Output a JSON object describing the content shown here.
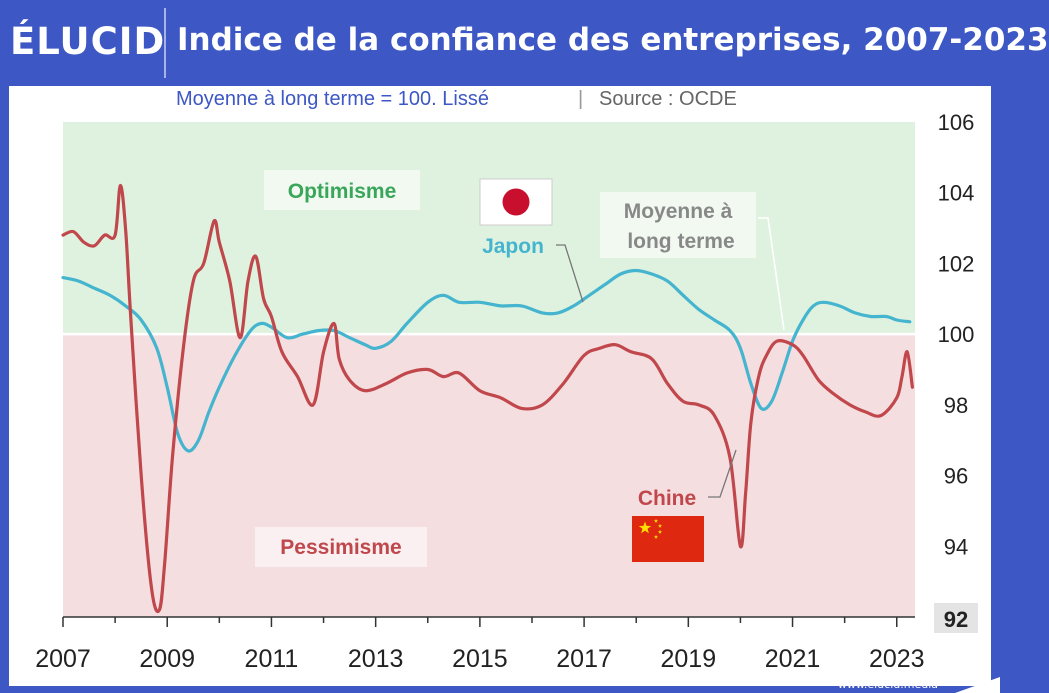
{
  "header": {
    "brand": "ÉLUCID",
    "title": "Indice de la confiance des entreprises, 2007-2023"
  },
  "subtitle": {
    "main": "Moyenne à long terme = 100. Lissé",
    "separator": "|",
    "source": "Source : OCDE"
  },
  "footer": {
    "url": "www.elucid.media"
  },
  "colors": {
    "optimism_zone": "#dff2df",
    "pessimism_zone": "#f5dedf",
    "japan": "#45b4cf",
    "china": "#c0474b",
    "optimism_text": "#3aa65a",
    "pessimism_text": "#c0474b",
    "brand_blue": "#3d57c4"
  },
  "chart_data": {
    "type": "line",
    "title": "Indice de la confiance des entreprises, 2007-2023",
    "subtitle": "Moyenne à long terme = 100. Lissé | Source : OCDE",
    "xlim": [
      2007,
      2023.35
    ],
    "ylim": [
      92,
      106
    ],
    "x_ticks": [
      "2007",
      "2009",
      "2011",
      "2013",
      "2015",
      "2017",
      "2019",
      "2021",
      "2023"
    ],
    "y_ticks": [
      "92",
      "94",
      "96",
      "98",
      "100",
      "102",
      "104",
      "106"
    ],
    "reference_line": {
      "y": 100,
      "label": "Moyenne à long terme"
    },
    "zones": {
      "above": "Optimisme",
      "below": "Pessimisme"
    },
    "series": [
      {
        "name": "Japon",
        "x": [
          2007.0,
          2007.3,
          2007.6,
          2007.9,
          2008.2,
          2008.5,
          2008.8,
          2009.0,
          2009.2,
          2009.4,
          2009.6,
          2009.8,
          2010.0,
          2010.3,
          2010.6,
          2010.8,
          2011.0,
          2011.3,
          2011.6,
          2011.9,
          2012.2,
          2012.5,
          2012.8,
          2013.0,
          2013.3,
          2013.6,
          2014.0,
          2014.3,
          2014.6,
          2015.0,
          2015.4,
          2015.8,
          2016.2,
          2016.5,
          2016.8,
          2017.1,
          2017.4,
          2017.7,
          2018.0,
          2018.3,
          2018.6,
          2018.9,
          2019.2,
          2019.5,
          2019.8,
          2020.0,
          2020.2,
          2020.4,
          2020.6,
          2020.8,
          2021.0,
          2021.2,
          2021.4,
          2021.6,
          2021.9,
          2022.2,
          2022.5,
          2022.8,
          2023.0,
          2023.25
        ],
        "y": [
          101.6,
          101.5,
          101.3,
          101.1,
          100.8,
          100.4,
          99.6,
          98.5,
          97.2,
          96.7,
          97.0,
          97.8,
          98.5,
          99.4,
          100.1,
          100.3,
          100.2,
          99.9,
          100.0,
          100.1,
          100.1,
          99.9,
          99.7,
          99.6,
          99.8,
          100.3,
          100.9,
          101.1,
          100.9,
          100.9,
          100.8,
          100.8,
          100.6,
          100.6,
          100.8,
          101.1,
          101.4,
          101.7,
          101.8,
          101.7,
          101.5,
          101.1,
          100.7,
          100.4,
          100.1,
          99.6,
          98.6,
          97.9,
          98.1,
          98.9,
          99.8,
          100.4,
          100.8,
          100.9,
          100.8,
          100.6,
          100.5,
          100.5,
          100.4,
          100.35
        ]
      },
      {
        "name": "Chine",
        "x": [
          2007.0,
          2007.2,
          2007.4,
          2007.6,
          2007.8,
          2008.0,
          2008.1,
          2008.2,
          2008.3,
          2008.5,
          2008.7,
          2008.85,
          2008.95,
          2009.1,
          2009.3,
          2009.5,
          2009.7,
          2009.9,
          2010.0,
          2010.2,
          2010.4,
          2010.55,
          2010.7,
          2010.85,
          2011.0,
          2011.2,
          2011.5,
          2011.8,
          2012.0,
          2012.2,
          2012.3,
          2012.5,
          2012.8,
          2013.2,
          2013.6,
          2014.0,
          2014.3,
          2014.6,
          2015.0,
          2015.4,
          2015.8,
          2016.2,
          2016.6,
          2017.0,
          2017.3,
          2017.6,
          2017.9,
          2018.3,
          2018.6,
          2018.9,
          2019.2,
          2019.5,
          2019.8,
          2020.0,
          2020.1,
          2020.2,
          2020.35,
          2020.5,
          2020.7,
          2021.0,
          2021.2,
          2021.5,
          2021.8,
          2022.1,
          2022.4,
          2022.7,
          2023.0,
          2023.1,
          2023.2,
          2023.3
        ],
        "y": [
          102.8,
          102.9,
          102.6,
          102.5,
          102.8,
          102.8,
          104.2,
          103.0,
          100.5,
          96.0,
          92.8,
          92.2,
          93.5,
          96.5,
          99.5,
          101.5,
          102.0,
          103.2,
          102.6,
          101.5,
          99.9,
          101.5,
          102.2,
          101.0,
          100.5,
          99.5,
          98.8,
          98.0,
          99.5,
          100.3,
          99.3,
          98.7,
          98.4,
          98.6,
          98.9,
          99.0,
          98.8,
          98.9,
          98.4,
          98.2,
          97.9,
          98.0,
          98.6,
          99.4,
          99.6,
          99.7,
          99.5,
          99.3,
          98.6,
          98.1,
          98.0,
          97.7,
          96.5,
          94.0,
          95.5,
          97.5,
          98.8,
          99.4,
          99.8,
          99.7,
          99.4,
          98.7,
          98.3,
          98.0,
          97.8,
          97.7,
          98.2,
          98.8,
          99.5,
          98.5
        ]
      }
    ],
    "annotations": [
      "Optimisme",
      "Pessimisme",
      "Japon",
      "Chine",
      "Moyenne à long terme"
    ]
  },
  "labels": {
    "optimism": "Optimisme",
    "pessimism": "Pessimisme",
    "japan": "Japon",
    "china": "Chine",
    "average_line1": "Moyenne à",
    "average_line2": "long terme"
  },
  "flags": {
    "japan": "japan-flag-icon",
    "china": "china-flag-icon"
  }
}
